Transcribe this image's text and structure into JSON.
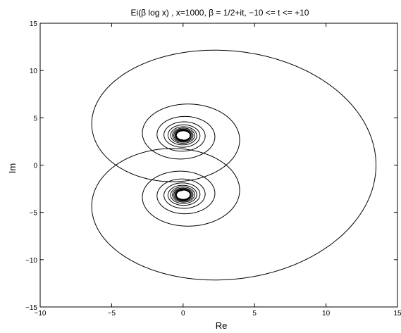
{
  "chart_data": {
    "type": "line",
    "title": "Ei(β log x) , x=1000, β = 1/2+it, −10 <= t <= +10",
    "xlabel": "Re",
    "ylabel": "Im",
    "xlim": [
      -10,
      15
    ],
    "ylim": [
      -15,
      15
    ],
    "xticks": [
      -10,
      -5,
      0,
      5,
      10,
      15
    ],
    "yticks": [
      -15,
      -10,
      -5,
      0,
      5,
      10,
      15
    ],
    "xtick_labels": [
      "−10",
      "−5",
      "0",
      "5",
      "10",
      "15"
    ],
    "ytick_labels": [
      "−15",
      "−10",
      "−5",
      "0",
      "5",
      "10",
      "15"
    ],
    "grid": false,
    "line_color": "#000000",
    "series": [
      {
        "t_range": [
          -10,
          10
        ],
        "x_param": 1000,
        "beta_real": 0.5
      }
    ]
  }
}
